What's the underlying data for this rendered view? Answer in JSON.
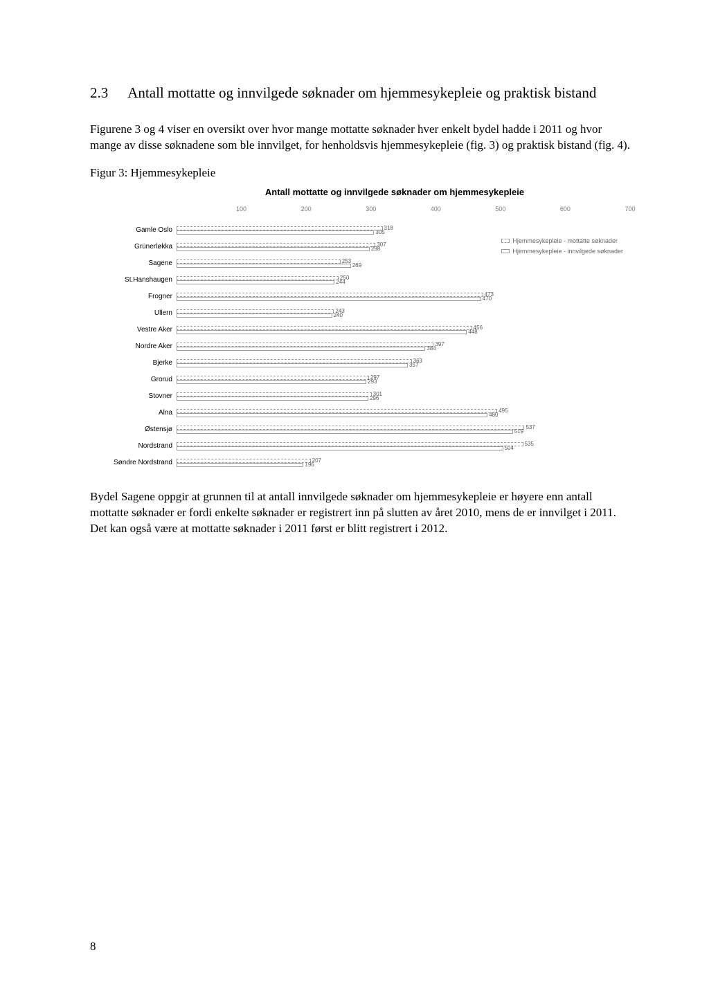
{
  "section": {
    "number": "2.3",
    "title": "Antall mottatte og innvilgede søknader om hjemmesykepleie og praktisk bistand"
  },
  "intro_paragraph": "Figurene 3 og 4 viser en oversikt over hvor mange mottatte søknader hver enkelt bydel hadde i 2011 og hvor mange av disse søknadene som ble innvilget, for henholdsvis hjemmesykepleie (fig. 3) og praktisk bistand (fig. 4).",
  "figure_label": "Figur 3: Hjemmesykepleie",
  "chart": {
    "type": "bar",
    "title": "Antall mottatte og innvilgede søknader om hjemmesykepleie",
    "x_ticks": [
      0,
      100,
      200,
      300,
      400,
      500,
      600,
      700
    ],
    "x_max": 700,
    "legend": {
      "mottatt": "Hjemmesykepleie - mottatte søknader",
      "innvilget": "Hjemmesykepleie - innvilgede søknader"
    },
    "series": [
      {
        "label": "Gamle Oslo",
        "mottatt": 318,
        "innvilget": 305
      },
      {
        "label": "Grünerløkka",
        "mottatt": 307,
        "innvilget": 298
      },
      {
        "label": "Sagene",
        "mottatt": 253,
        "innvilget": 269
      },
      {
        "label": "St.Hanshaugen",
        "mottatt": 250,
        "innvilget": 244
      },
      {
        "label": "Frogner",
        "mottatt": 473,
        "innvilget": 470
      },
      {
        "label": "Ullern",
        "mottatt": 243,
        "innvilget": 240
      },
      {
        "label": "Vestre Aker",
        "mottatt": 456,
        "innvilget": 448
      },
      {
        "label": "Nordre Aker",
        "mottatt": 397,
        "innvilget": 384
      },
      {
        "label": "Bjerke",
        "mottatt": 363,
        "innvilget": 357
      },
      {
        "label": "Grorud",
        "mottatt": 297,
        "innvilget": 293
      },
      {
        "label": "Stovner",
        "mottatt": 301,
        "innvilget": 296
      },
      {
        "label": "Alna",
        "mottatt": 495,
        "innvilget": 480
      },
      {
        "label": "Østensjø",
        "mottatt": 537,
        "innvilget": 519
      },
      {
        "label": "Nordstrand",
        "mottatt": 535,
        "innvilget": 504
      },
      {
        "label": "Søndre Nordstrand",
        "mottatt": 207,
        "innvilget": 196
      }
    ],
    "colors": {
      "bar_fill": "#ffffff",
      "bar_border": "#999999",
      "background": "#ffffff",
      "tick_text": "#777777",
      "value_text": "#555555"
    }
  },
  "closing_paragraph": "Bydel Sagene oppgir at grunnen til at antall innvilgede søknader om hjemmesykepleie er høyere enn antall mottatte søknader er fordi enkelte søknader er registrert inn på slutten av året 2010, mens de er innvilget i 2011. Det kan også være at mottatte søknader i 2011 først er blitt registrert i 2012.",
  "page_number": "8"
}
